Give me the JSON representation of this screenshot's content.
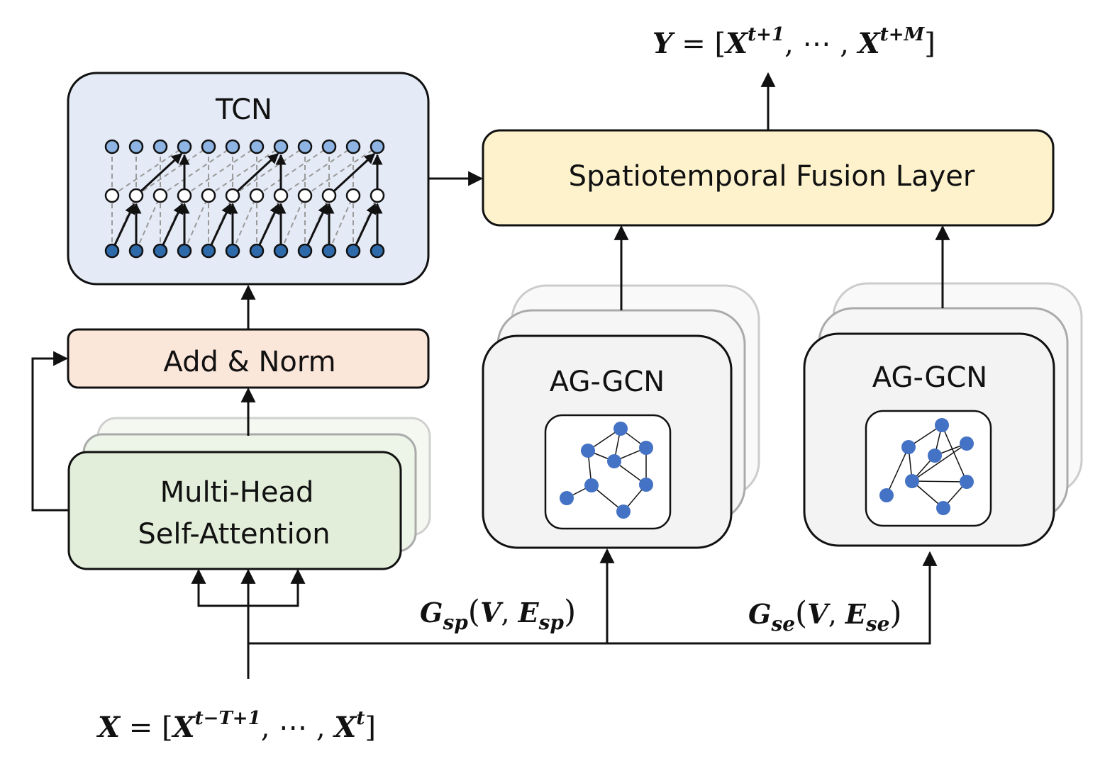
{
  "colors": {
    "tcn_fill": "#e4eaf6",
    "addnorm_fill": "#fbe6da",
    "mhsa_fill": "#e2eed9",
    "fusion_fill": "#fdf2cc",
    "gcn_fill": "#f3f3f3",
    "graph_node": "#4472c4",
    "tcn_top_node": "#8db4e2",
    "tcn_bottom_node": "#2e6aaa"
  },
  "blocks": {
    "tcn": "TCN",
    "add_norm": "Add & Norm",
    "mhsa_line1": "Multi-Head",
    "mhsa_line2": "Self-Attention",
    "fusion": "Spatiotemporal Fusion Layer",
    "gcn_spatial": "AG-GCN",
    "gcn_semantic": "AG-GCN"
  },
  "formulas": {
    "output": {
      "lhs": "Y",
      "eq": " = [",
      "x1": "X",
      "sup1": "t+1",
      "mid": ", ⋯ , ",
      "x2": "X",
      "sup2": "t+M",
      "end": "]"
    },
    "input": {
      "lhs": "X",
      "eq": " = [",
      "x1": "X",
      "sup1": "t−T+1",
      "mid": ", ⋯ , ",
      "x2": "X",
      "sup2": "t",
      "end": "]"
    },
    "graph_spatial": {
      "g": "G",
      "sub": "sp",
      "open": "(",
      "v": "V",
      "comma": ", ",
      "e": "E",
      "esub": "sp",
      "close": ")"
    },
    "graph_semantic": {
      "g": "G",
      "sub": "se",
      "open": "(",
      "v": "V",
      "comma": ", ",
      "e": "E",
      "esub": "se",
      "close": ")"
    }
  }
}
